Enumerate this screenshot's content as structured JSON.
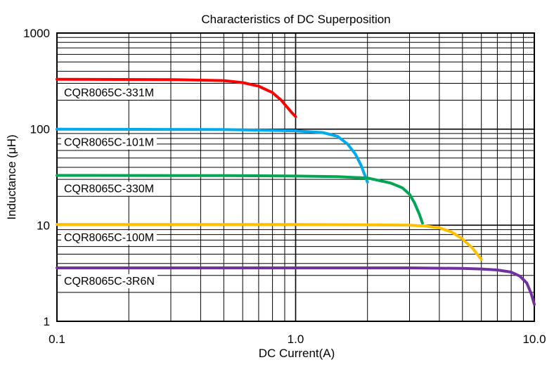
{
  "chart_data": {
    "type": "line",
    "title": "Characteristics of DC Superposition",
    "xlabel": "DC Current(A)",
    "ylabel": "Inductance (μH)",
    "x_scale": "log",
    "y_scale": "log",
    "xlim": [
      0.1,
      10.0
    ],
    "ylim": [
      1,
      1000
    ],
    "x_ticks": [
      {
        "value": 0.1,
        "label": "0.1"
      },
      {
        "value": 1.0,
        "label": "1.0"
      },
      {
        "value": 10.0,
        "label": "10.0"
      }
    ],
    "y_ticks": [
      {
        "value": 1,
        "label": "1"
      },
      {
        "value": 10,
        "label": "10"
      },
      {
        "value": 100,
        "label": "100"
      },
      {
        "value": 1000,
        "label": "1000"
      }
    ],
    "grid": true,
    "series": [
      {
        "name": "CQR8065C-331M",
        "color": "#ff0000",
        "x": [
          0.1,
          0.3,
          0.5,
          0.6,
          0.7,
          0.8,
          0.87,
          0.92,
          0.96,
          1.0
        ],
        "y": [
          330,
          328,
          320,
          305,
          280,
          240,
          200,
          170,
          150,
          135
        ]
      },
      {
        "name": "CQR8065C-101M",
        "color": "#00aaee",
        "x": [
          0.1,
          0.5,
          1.0,
          1.3,
          1.5,
          1.65,
          1.78,
          1.88,
          1.96,
          2.0
        ],
        "y": [
          100,
          99,
          96,
          92,
          84,
          70,
          55,
          42,
          32,
          28
        ]
      },
      {
        "name": "CQR8065C-330M",
        "color": "#00a651",
        "x": [
          0.1,
          0.5,
          1.0,
          1.5,
          2.0,
          2.5,
          2.8,
          3.0,
          3.15,
          3.3,
          3.4
        ],
        "y": [
          33,
          32.8,
          32.5,
          32,
          31,
          27.5,
          24.5,
          21,
          17,
          13,
          10.5
        ]
      },
      {
        "name": "CQR8065C-100M",
        "color": "#ffc000",
        "x": [
          0.1,
          1.0,
          2.0,
          3.0,
          3.5,
          4.0,
          4.5,
          5.0,
          5.5,
          6.0
        ],
        "y": [
          10.2,
          10.2,
          10.1,
          10,
          9.8,
          9.4,
          8.5,
          7.2,
          5.8,
          4.4
        ]
      },
      {
        "name": "CQR8065C-3R6N",
        "color": "#7030a0",
        "x": [
          0.1,
          1.0,
          3.0,
          5.0,
          6.0,
          7.0,
          8.0,
          8.7,
          9.3,
          9.7,
          10.0
        ],
        "y": [
          3.6,
          3.6,
          3.6,
          3.55,
          3.5,
          3.42,
          3.25,
          2.95,
          2.5,
          1.95,
          1.5
        ]
      }
    ]
  }
}
